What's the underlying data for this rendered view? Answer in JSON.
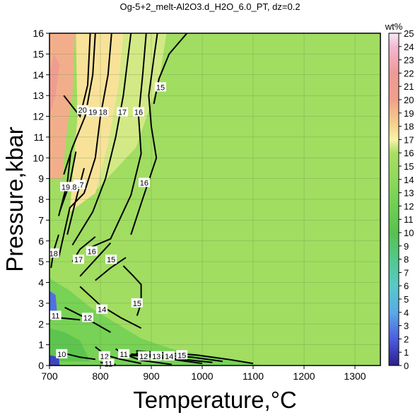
{
  "chart_data": {
    "type": "heatmap",
    "title": "Og-5+2_melt-Al2O3.d_H2O_6.0_PT, dz=0.2",
    "xlabel": "Temperature,°C",
    "ylabel": "Pressure,kbar",
    "xlim": [
      700,
      1350
    ],
    "ylim": [
      0,
      16
    ],
    "x_ticks": [
      "700",
      "800",
      "900",
      "1000",
      "1100",
      "1200",
      "1300"
    ],
    "y_ticks": [
      "0",
      "1",
      "2",
      "3",
      "4",
      "5",
      "6",
      "7",
      "8",
      "9",
      "10",
      "11",
      "12",
      "13",
      "14",
      "15",
      "16"
    ],
    "colorbar": {
      "unit": "wt%",
      "range": [
        0,
        25
      ],
      "ticks": [
        "0",
        "1",
        "2",
        "3",
        "4",
        "5",
        "6",
        "7",
        "8",
        "9",
        "10",
        "11",
        "12",
        "13",
        "14",
        "15",
        "16",
        "17",
        "18",
        "19",
        "20",
        "21",
        "22",
        "23",
        "24",
        "25"
      ],
      "palette": [
        {
          "v": 0,
          "c": "#2a1f8a"
        },
        {
          "v": 2,
          "c": "#4c5de0"
        },
        {
          "v": 4,
          "c": "#5aa9e8"
        },
        {
          "v": 6,
          "c": "#58c9c8"
        },
        {
          "v": 8,
          "c": "#53c98a"
        },
        {
          "v": 10,
          "c": "#57c24e"
        },
        {
          "v": 12,
          "c": "#6fcf52"
        },
        {
          "v": 14,
          "c": "#8ed95c"
        },
        {
          "v": 16,
          "c": "#a9df63"
        },
        {
          "v": 17,
          "c": "#fbf3a8"
        },
        {
          "v": 18,
          "c": "#f6d68f"
        },
        {
          "v": 20,
          "c": "#f0a08a"
        },
        {
          "v": 22,
          "c": "#ee9a97"
        },
        {
          "v": 24,
          "c": "#f3b8d2"
        },
        {
          "v": 25,
          "c": "#fbe8f4"
        }
      ]
    },
    "regions": [
      {
        "value": 15.3,
        "points": [
          [
            700,
            0
          ],
          [
            1350,
            0
          ],
          [
            1350,
            16
          ],
          [
            700,
            16
          ]
        ]
      },
      {
        "value": 16.5,
        "points": [
          [
            790,
            8.4
          ],
          [
            870,
            10.5
          ],
          [
            915,
            13.7
          ],
          [
            930,
            16
          ],
          [
            840,
            16
          ],
          [
            820,
            14
          ],
          [
            795,
            11
          ]
        ]
      },
      {
        "value": 17.6,
        "points": [
          [
            740,
            7.4
          ],
          [
            790,
            8.3
          ],
          [
            815,
            10.7
          ],
          [
            835,
            13.4
          ],
          [
            845,
            16
          ],
          [
            752,
            16
          ],
          [
            755,
            12
          ],
          [
            745,
            9
          ]
        ]
      },
      {
        "value": 19.5,
        "points": [
          [
            700,
            9
          ],
          [
            725,
            9
          ],
          [
            735,
            11.5
          ],
          [
            745,
            13
          ],
          [
            750,
            16
          ],
          [
            700,
            16
          ]
        ]
      },
      {
        "value": 21,
        "points": [
          [
            700,
            12
          ],
          [
            712,
            13
          ],
          [
            720,
            14.5
          ],
          [
            708,
            15
          ],
          [
            700,
            14
          ]
        ]
      },
      {
        "value": 12.5,
        "points": [
          [
            700,
            0
          ],
          [
            1120,
            0
          ],
          [
            1040,
            0.3
          ],
          [
            940,
            0.8
          ],
          [
            880,
            1.3
          ],
          [
            820,
            2.2
          ],
          [
            780,
            2.8
          ],
          [
            740,
            3.6
          ],
          [
            700,
            4.2
          ]
        ]
      },
      {
        "value": 10.5,
        "points": [
          [
            700,
            0.2
          ],
          [
            780,
            0.2
          ],
          [
            760,
            1.2
          ],
          [
            730,
            1.6
          ],
          [
            700,
            1.8
          ]
        ]
      },
      {
        "value": 2.5,
        "points": [
          [
            700,
            2.2
          ],
          [
            715,
            2.5
          ],
          [
            712,
            3.4
          ],
          [
            700,
            3.6
          ]
        ]
      },
      {
        "value": 1.2,
        "points": [
          [
            700,
            0
          ],
          [
            720,
            0
          ],
          [
            718,
            0.4
          ],
          [
            700,
            0.5
          ]
        ]
      }
    ],
    "contours": [
      {
        "label": "15",
        "points": [
          [
            845,
            4.8
          ],
          [
            865,
            4.3
          ],
          [
            880,
            3.9
          ],
          [
            880,
            3
          ],
          [
            872,
            2.4
          ]
        ],
        "label_at": [
          872,
          3.0
        ]
      },
      {
        "label": "15",
        "points": [
          [
            905,
            12.6
          ],
          [
            915,
            13.8
          ],
          [
            935,
            15
          ],
          [
            970,
            16
          ]
        ],
        "label_at": [
          918,
          13.4
        ]
      },
      {
        "label": "16",
        "points": [
          [
            860,
            6.3
          ],
          [
            880,
            7.8
          ],
          [
            910,
            10
          ],
          [
            900,
            11.5
          ],
          [
            895,
            13
          ],
          [
            905,
            14.8
          ],
          [
            912,
            16
          ]
        ],
        "label_at": [
          886,
          8.8
        ]
      },
      {
        "label": "16",
        "points": [
          [
            772,
            5.6
          ],
          [
            820,
            6.1
          ],
          [
            860,
            8.2
          ],
          [
            880,
            10.2
          ],
          [
            875,
            12
          ],
          [
            883,
            14
          ],
          [
            890,
            16
          ]
        ],
        "label_at": [
          875,
          12.2
        ]
      },
      {
        "label": "17",
        "points": [
          [
            745,
            5.8
          ],
          [
            785,
            7.4
          ],
          [
            810,
            9
          ],
          [
            830,
            11
          ],
          [
            845,
            13
          ],
          [
            860,
            16
          ]
        ],
        "label_at": [
          843,
          12.2
        ]
      },
      {
        "label": "18",
        "points": [
          [
            718,
            5.2
          ],
          [
            740,
            7.6
          ],
          [
            768,
            8.3
          ],
          [
            790,
            10
          ],
          [
            800,
            12
          ],
          [
            815,
            14
          ],
          [
            822,
            16
          ]
        ],
        "label_at": [
          805,
          12.2
        ]
      },
      {
        "label": "19",
        "points": [
          [
            728,
            9.2
          ],
          [
            745,
            10.5
          ],
          [
            770,
            12
          ],
          [
            785,
            14
          ],
          [
            790,
            16
          ]
        ],
        "label_at": [
          785,
          12.2
        ]
      },
      {
        "label": "20",
        "points": [
          [
            728,
            13
          ],
          [
            760,
            12
          ],
          [
            775,
            13.5
          ],
          [
            780,
            16
          ]
        ],
        "label_at": [
          765,
          12.3
        ]
      },
      {
        "label": "17",
        "points": [
          [
            735,
            6.3
          ],
          [
            750,
            7.8
          ],
          [
            768,
            9.5
          ]
        ],
        "label_at": [
          759,
          8.7
        ]
      },
      {
        "label": "18",
        "points": [
          [
            720,
            7.4
          ],
          [
            740,
            8.8
          ],
          [
            752,
            10.3
          ]
        ],
        "label_at": [
          745,
          8.6
        ]
      },
      {
        "label": "19",
        "points": [
          [
            718,
            7.2
          ],
          [
            735,
            8.8
          ],
          [
            742,
            10.3
          ]
        ],
        "label_at": [
          732,
          8.6
        ]
      },
      {
        "label": "18",
        "points": [
          [
            703,
            4.7
          ],
          [
            708,
            5.5
          ],
          [
            718,
            6.3
          ]
        ],
        "label_at": [
          708,
          5.4
        ]
      },
      {
        "label": "17",
        "points": [
          [
            745,
            5
          ],
          [
            760,
            5.6
          ],
          [
            790,
            6.2
          ]
        ],
        "label_at": [
          757,
          5.1
        ]
      },
      {
        "label": "16",
        "points": [
          [
            760,
            4.3
          ],
          [
            790,
            5.1
          ],
          [
            820,
            5.9
          ]
        ],
        "label_at": [
          783,
          5.5
        ]
      },
      {
        "label": "15",
        "points": [
          [
            790,
            4.1
          ],
          [
            820,
            4.7
          ],
          [
            850,
            5.2
          ]
        ],
        "label_at": [
          821,
          5.1
        ]
      },
      {
        "label": "14",
        "points": [
          [
            760,
            3.8
          ],
          [
            800,
            2.9
          ],
          [
            840,
            2.3
          ],
          [
            880,
            1.8
          ]
        ],
        "label_at": [
          803,
          2.7
        ]
      },
      {
        "label": "12",
        "points": [
          [
            730,
            2.8
          ],
          [
            770,
            2.3
          ],
          [
            820,
            1.6
          ]
        ],
        "label_at": [
          775,
          2.3
        ]
      },
      {
        "label": "11",
        "points": [
          [
            700,
            2.2
          ],
          [
            718,
            2.3
          ],
          [
            760,
            2.2
          ]
        ],
        "label_at": [
          712,
          2.4
        ]
      },
      {
        "label": "15",
        "points": [
          [
            870,
            0.7
          ],
          [
            930,
            0.6
          ],
          [
            990,
            0.5
          ],
          [
            1050,
            0.3
          ],
          [
            1100,
            0.1
          ]
        ],
        "label_at": [
          960,
          0.5
        ]
      },
      {
        "label": "14",
        "points": [
          [
            870,
            0.6
          ],
          [
            920,
            0.5
          ],
          [
            980,
            0.4
          ],
          [
            1040,
            0.2
          ]
        ],
        "label_at": [
          935,
          0.45
        ]
      },
      {
        "label": "13",
        "points": [
          [
            860,
            0.55
          ],
          [
            910,
            0.45
          ],
          [
            960,
            0.3
          ],
          [
            1020,
            0.15
          ]
        ],
        "label_at": [
          910,
          0.45
        ]
      },
      {
        "label": "12",
        "points": [
          [
            850,
            0.5
          ],
          [
            885,
            0.45
          ],
          [
            940,
            0.3
          ],
          [
            1000,
            0.1
          ]
        ],
        "label_at": [
          885,
          0.45
        ]
      },
      {
        "label": "11",
        "points": [
          [
            830,
            0.8
          ],
          [
            846,
            0.55
          ],
          [
            880,
            0.25
          ],
          [
            940,
            0.05
          ]
        ],
        "label_at": [
          846,
          0.55
        ]
      },
      {
        "label": "12",
        "points": [
          [
            790,
            0.9
          ],
          [
            810,
            0.5
          ],
          [
            840,
            0.3
          ],
          [
            880,
            0.1
          ]
        ],
        "label_at": [
          808,
          0.45
        ]
      },
      {
        "label": "11",
        "points": [
          [
            800,
            0.15
          ],
          [
            815,
            0.08
          ],
          [
            830,
            0.05
          ]
        ],
        "label_at": [
          816,
          0.08
        ]
      },
      {
        "label": "10",
        "points": [
          [
            720,
            0.6
          ],
          [
            735,
            0.55
          ],
          [
            760,
            0.4
          ],
          [
            790,
            0.3
          ]
        ],
        "label_at": [
          724,
          0.55
        ]
      }
    ]
  }
}
